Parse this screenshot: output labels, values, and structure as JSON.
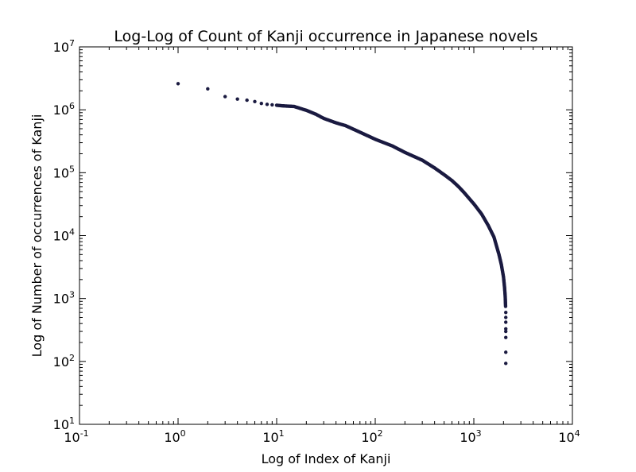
{
  "chart_data": {
    "type": "scatter",
    "title": "Log-Log of Count of Kanji occurrence in Japanese novels",
    "xlabel": "Log of Index of Kanji",
    "ylabel": "Log of Number of occurrences of Kanji",
    "xscale": "log",
    "yscale": "log",
    "xlim": [
      0.1,
      10000
    ],
    "ylim": [
      10,
      10000000
    ],
    "x_ticks": [
      {
        "base": "10",
        "exp": "-1"
      },
      {
        "base": "10",
        "exp": "0"
      },
      {
        "base": "10",
        "exp": "1"
      },
      {
        "base": "10",
        "exp": "2"
      },
      {
        "base": "10",
        "exp": "3"
      },
      {
        "base": "10",
        "exp": "4"
      }
    ],
    "y_ticks": [
      {
        "base": "10",
        "exp": "1"
      },
      {
        "base": "10",
        "exp": "2"
      },
      {
        "base": "10",
        "exp": "3"
      },
      {
        "base": "10",
        "exp": "4"
      },
      {
        "base": "10",
        "exp": "5"
      },
      {
        "base": "10",
        "exp": "6"
      },
      {
        "base": "10",
        "exp": "7"
      }
    ],
    "grid": false,
    "marker_color": "#1a1a40",
    "curve_points": [
      [
        1,
        2600000
      ],
      [
        2,
        2150000
      ],
      [
        3,
        1620000
      ],
      [
        4,
        1480000
      ],
      [
        5,
        1420000
      ],
      [
        6,
        1350000
      ],
      [
        7,
        1260000
      ],
      [
        8,
        1220000
      ],
      [
        9,
        1200000
      ],
      [
        10,
        1180000
      ],
      [
        12,
        1150000
      ],
      [
        15,
        1130000
      ],
      [
        20,
        980000
      ],
      [
        25,
        850000
      ],
      [
        30,
        730000
      ],
      [
        40,
        620000
      ],
      [
        50,
        560000
      ],
      [
        70,
        440000
      ],
      [
        100,
        340000
      ],
      [
        150,
        265000
      ],
      [
        200,
        210000
      ],
      [
        300,
        158000
      ],
      [
        400,
        119000
      ],
      [
        500,
        93000
      ],
      [
        600,
        75000
      ],
      [
        700,
        60000
      ],
      [
        800,
        48000
      ],
      [
        1000,
        32000
      ],
      [
        1200,
        22000
      ],
      [
        1400,
        14500
      ],
      [
        1600,
        9500
      ],
      [
        1800,
        5000
      ],
      [
        1900,
        3500
      ],
      [
        2000,
        2200
      ],
      [
        2050,
        1500
      ],
      [
        2080,
        1100
      ],
      [
        2100,
        750
      ]
    ],
    "tail_points": [
      [
        2110,
        600
      ],
      [
        2110,
        500
      ],
      [
        2110,
        420
      ],
      [
        2110,
        330
      ],
      [
        2110,
        300
      ],
      [
        2110,
        240
      ],
      [
        2110,
        140
      ],
      [
        2110,
        93
      ]
    ]
  }
}
